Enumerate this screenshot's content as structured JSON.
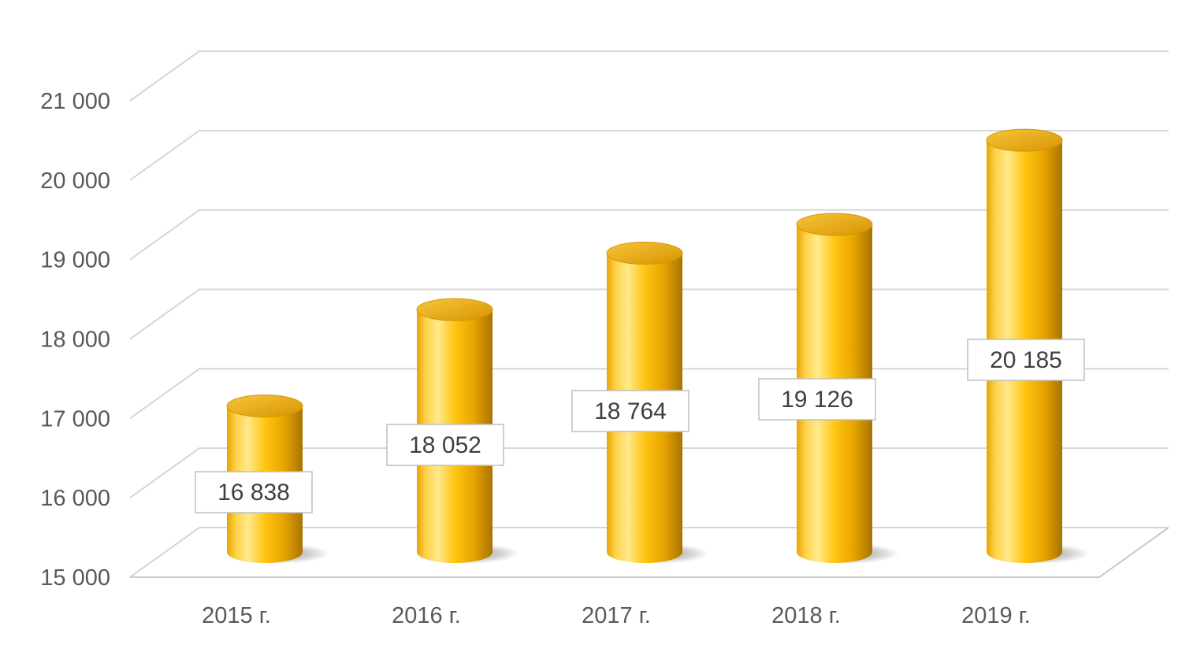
{
  "chart_data": {
    "type": "bar",
    "subtype": "3d-cylinder",
    "title": "",
    "xlabel": "",
    "ylabel": "",
    "categories": [
      "2015 г.",
      "2016 г.",
      "2017 г.",
      "2018 г.",
      "2019 г."
    ],
    "values": [
      16838,
      18052,
      18764,
      19126,
      20185
    ],
    "data_labels": [
      "16 838",
      "18 052",
      "18 764",
      "19 126",
      "20 185"
    ],
    "y_ticks": [
      {
        "value": 21000,
        "label": "21 000"
      },
      {
        "value": 20000,
        "label": "20 000"
      },
      {
        "value": 19000,
        "label": "19 000"
      },
      {
        "value": 18000,
        "label": "18 000"
      },
      {
        "value": 17000,
        "label": "17 000"
      },
      {
        "value": 16000,
        "label": "16 000"
      },
      {
        "value": 15000,
        "label": "15 000"
      }
    ],
    "ylim": [
      15000,
      21000
    ],
    "grid": true,
    "legend": false,
    "colors": {
      "bar_highlight": "#FFE98C",
      "bar_light": "#FFD34A",
      "bar_main": "#FFC512",
      "bar_dark": "#E8A400",
      "bar_edge_dark": "#A87400",
      "bar_top_light": "#F7C63C",
      "bar_top_dark": "#D79400",
      "gridline": "#D6D6D6",
      "floor_line": "#C9C9C9",
      "axis_text": "#595959",
      "data_label_text": "#404040",
      "data_label_border": "#BFBFBF",
      "data_label_bg": "#FFFFFF",
      "shadow": "#787878",
      "background": "#FFFFFF"
    }
  }
}
